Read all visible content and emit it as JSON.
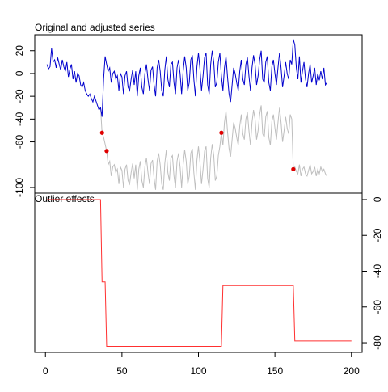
{
  "chart_data": [
    {
      "type": "line",
      "title": "Original and adjusted series",
      "xlim": [
        -7,
        207
      ],
      "ylim": [
        -105,
        34
      ],
      "yticks": [
        20,
        0,
        -20,
        -40,
        -60,
        -100
      ],
      "yaxis": "left",
      "x": [
        1,
        2,
        3,
        4,
        5,
        6,
        7,
        8,
        9,
        10,
        11,
        12,
        13,
        14,
        15,
        16,
        17,
        18,
        19,
        20,
        21,
        22,
        23,
        24,
        25,
        26,
        27,
        28,
        29,
        30,
        31,
        32,
        33,
        34,
        35,
        36,
        37,
        38,
        39,
        40,
        41,
        42,
        43,
        44,
        45,
        46,
        47,
        48,
        49,
        50,
        51,
        52,
        53,
        54,
        55,
        56,
        57,
        58,
        59,
        60,
        61,
        62,
        63,
        64,
        65,
        66,
        67,
        68,
        69,
        70,
        71,
        72,
        73,
        74,
        75,
        76,
        77,
        78,
        79,
        80,
        81,
        82,
        83,
        84,
        85,
        86,
        87,
        88,
        89,
        90,
        91,
        92,
        93,
        94,
        95,
        96,
        97,
        98,
        99,
        100,
        101,
        102,
        103,
        104,
        105,
        106,
        107,
        108,
        109,
        110,
        111,
        112,
        113,
        114,
        115,
        116,
        117,
        118,
        119,
        120,
        121,
        122,
        123,
        124,
        125,
        126,
        127,
        128,
        129,
        130,
        131,
        132,
        133,
        134,
        135,
        136,
        137,
        138,
        139,
        140,
        141,
        142,
        143,
        144,
        145,
        146,
        147,
        148,
        149,
        150,
        151,
        152,
        153,
        154,
        155,
        156,
        157,
        158,
        159,
        160,
        161,
        162,
        163,
        164,
        165,
        166,
        167,
        168,
        169,
        170,
        171,
        172,
        173,
        174,
        175,
        176,
        177,
        178,
        179,
        180,
        181,
        182,
        183,
        184
      ],
      "series": [
        {
          "color": "#bebebe",
          "values": [
            null,
            null,
            null,
            null,
            null,
            null,
            null,
            null,
            null,
            null,
            null,
            null,
            null,
            null,
            null,
            null,
            null,
            null,
            null,
            null,
            null,
            null,
            null,
            null,
            null,
            null,
            null,
            null,
            null,
            null,
            null,
            null,
            null,
            null,
            null,
            -30,
            -52,
            -56,
            -62,
            -68,
            -80,
            -77,
            -90,
            -82,
            -80,
            -87,
            -84,
            -97,
            -82,
            -85,
            -100,
            -84,
            -80,
            -94,
            -97,
            -87,
            -79,
            -92,
            -80,
            -102,
            -84,
            -77,
            -94,
            -100,
            -82,
            -74,
            -87,
            -97,
            -79,
            -76,
            -92,
            -102,
            -77,
            -70,
            -80,
            -97,
            -102,
            -79,
            -67,
            -87,
            -94,
            -74,
            -72,
            -90,
            -100,
            -77,
            -70,
            -82,
            -100,
            -80,
            -67,
            -77,
            -97,
            -90,
            -70,
            -66,
            -87,
            -102,
            -76,
            -64,
            -78,
            -97,
            -84,
            -68,
            -64,
            -92,
            -100,
            -74,
            -62,
            -72,
            -94,
            -90,
            -72,
            -64,
            -52,
            -63,
            -43,
            -33,
            -51,
            -66,
            -73,
            -58,
            -43,
            -48,
            -56,
            -63,
            -46,
            -36,
            -53,
            -58,
            -40,
            -34,
            -50,
            -63,
            -43,
            -32,
            -40,
            -58,
            -50,
            -36,
            -28,
            -53,
            -56,
            -38,
            -33,
            -56,
            -63,
            -42,
            -36,
            -48,
            -58,
            -43,
            -30,
            -43,
            -60,
            -50,
            -38,
            -48,
            -53,
            -36,
            -40,
            -84,
            -82,
            -86,
            -88,
            -80,
            -90,
            -84,
            -82,
            -88,
            -90,
            -85,
            -80,
            -88,
            -86,
            -82,
            -90,
            -84,
            -88,
            -82,
            -86,
            -84,
            -88,
            -90
          ]
        },
        {
          "color": "#0000cd",
          "values": [
            8,
            4,
            6,
            22,
            10,
            12,
            5,
            14,
            8,
            3,
            12,
            6,
            2,
            10,
            -3,
            4,
            8,
            -5,
            2,
            -8,
            0,
            -2,
            -10,
            -12,
            -8,
            -15,
            -18,
            -20,
            -18,
            -22,
            -25,
            -20,
            -24,
            -28,
            -32,
            -30,
            -38,
            -5,
            15,
            8,
            2,
            5,
            -8,
            0,
            2,
            -5,
            -2,
            -15,
            0,
            -3,
            -18,
            -2,
            2,
            -12,
            -15,
            -5,
            3,
            -10,
            2,
            -20,
            -2,
            5,
            -12,
            -18,
            0,
            8,
            -5,
            -15,
            3,
            6,
            -10,
            -20,
            5,
            12,
            2,
            -15,
            -20,
            3,
            15,
            -5,
            -12,
            8,
            10,
            -8,
            -18,
            5,
            12,
            0,
            -18,
            2,
            15,
            5,
            -15,
            -8,
            12,
            16,
            -5,
            -20,
            6,
            18,
            4,
            -15,
            -2,
            14,
            18,
            -10,
            -18,
            8,
            20,
            10,
            -12,
            -8,
            10,
            18,
            -2,
            -15,
            5,
            15,
            -3,
            -18,
            -25,
            -10,
            5,
            0,
            -8,
            -15,
            2,
            12,
            -5,
            -10,
            8,
            14,
            -2,
            -15,
            5,
            16,
            8,
            -10,
            -2,
            12,
            20,
            -5,
            -8,
            10,
            15,
            -8,
            -15,
            6,
            12,
            0,
            -10,
            5,
            18,
            5,
            -12,
            -2,
            10,
            0,
            -5,
            12,
            8,
            30,
            25,
            5,
            -5,
            15,
            -8,
            2,
            10,
            -5,
            -12,
            0,
            8,
            -8,
            -2,
            5,
            -10,
            0,
            -6,
            2,
            -5,
            5,
            -10,
            -8
          ]
        },
        {
          "color": "#e00000",
          "marker": "points",
          "x": [
            37,
            40,
            115,
            162
          ],
          "values": [
            -52,
            -68,
            -52,
            -84
          ]
        }
      ]
    },
    {
      "type": "line",
      "title": "Outlier effects",
      "xlim": [
        -7,
        207
      ],
      "xticks": [
        0,
        50,
        100,
        150,
        200
      ],
      "y2lim": [
        -85.4,
        3.6
      ],
      "y2ticks": [
        0,
        -20,
        -40,
        -60,
        -80
      ],
      "x": [
        1,
        36,
        37,
        39,
        40,
        115,
        116,
        162,
        163,
        200
      ],
      "series": [
        {
          "color": "#ff3030",
          "axis": "y2",
          "values": [
            0,
            0,
            -46,
            -46,
            -82,
            -82,
            -48,
            -48,
            -79,
            -79
          ]
        }
      ]
    }
  ]
}
